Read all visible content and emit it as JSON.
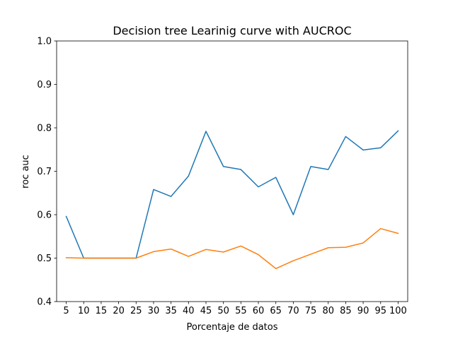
{
  "chart_data": {
    "type": "line",
    "title": "Decision tree Learinig curve with AUCROC",
    "xlabel": "Porcentaje de datos",
    "ylabel": "roc auc",
    "x": [
      5,
      10,
      15,
      20,
      25,
      30,
      35,
      40,
      45,
      50,
      55,
      60,
      65,
      70,
      75,
      80,
      85,
      90,
      95,
      100
    ],
    "ylim": [
      0.4,
      1.0
    ],
    "yticks": [
      "0.4",
      "0.5",
      "0.6",
      "0.7",
      "0.8",
      "0.9",
      "1.0"
    ],
    "grid": false,
    "series": [
      {
        "color": "#1f77b4",
        "values": [
          0.596,
          0.5,
          0.5,
          0.5,
          0.5,
          0.658,
          0.642,
          0.689,
          0.792,
          0.711,
          0.704,
          0.664,
          0.686,
          0.6,
          0.711,
          0.704,
          0.78,
          0.749,
          0.754,
          0.793
        ]
      },
      {
        "color": "#ff7f0e",
        "values": [
          0.501,
          0.5,
          0.5,
          0.5,
          0.5,
          0.515,
          0.521,
          0.504,
          0.52,
          0.514,
          0.528,
          0.508,
          0.476,
          0.494,
          0.509,
          0.524,
          0.525,
          0.535,
          0.568,
          0.557
        ]
      }
    ]
  }
}
